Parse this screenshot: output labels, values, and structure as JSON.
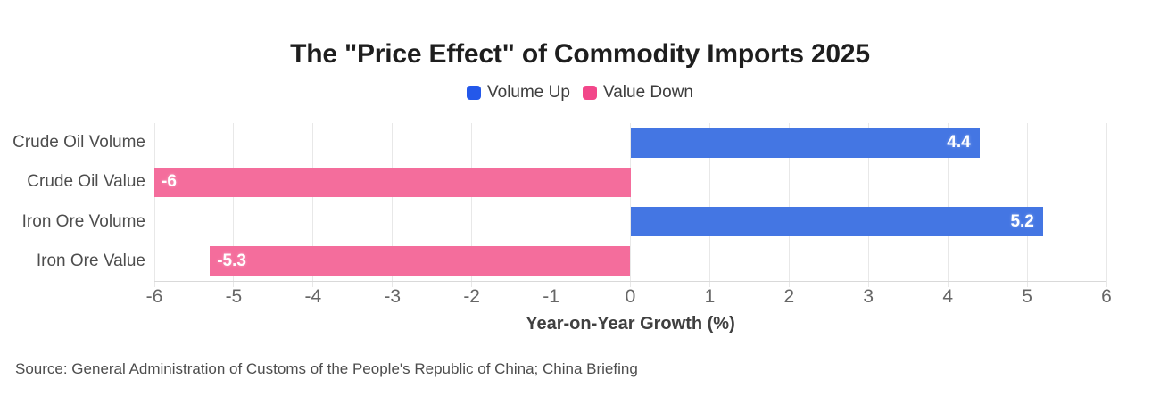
{
  "header": {
    "title": "The \"Price Effect\" of Commodity Imports 2025"
  },
  "legend": {
    "items": [
      {
        "label": "Volume Up",
        "color": "#2458EA"
      },
      {
        "label": "Value Down",
        "color": "#F2478A"
      }
    ]
  },
  "axis": {
    "x_title": "Year-on-Year Growth (%)"
  },
  "footer": {
    "source": "Source: General Administration of Customs of the People's Republic of China; China Briefing"
  },
  "chart_data": {
    "type": "bar",
    "orientation": "horizontal",
    "title": "The \"Price Effect\" of Commodity Imports 2025",
    "categories": [
      "Crude Oil Volume",
      "Crude Oil Value",
      "Iron Ore Volume",
      "Iron Ore Value"
    ],
    "values": [
      4.4,
      -6,
      5.2,
      -5.3
    ],
    "data_labels": [
      "4.4",
      "-6",
      "5.2",
      "-5.3"
    ],
    "series_by_bar": [
      "Volume Up",
      "Value Down",
      "Volume Up",
      "Value Down"
    ],
    "bar_colors": [
      "#4476E3",
      "#F46D9C",
      "#4476E3",
      "#F46D9C"
    ],
    "legend": [
      "Volume Up",
      "Value Down"
    ],
    "legend_colors": [
      "#2458EA",
      "#F2478A"
    ],
    "legend_position": "top",
    "xlabel": "Year-on-Year Growth (%)",
    "ylabel": "",
    "xlim": [
      -6,
      6
    ],
    "xticks": [
      -6,
      -5,
      -4,
      -3,
      -2,
      -1,
      0,
      1,
      2,
      3,
      4,
      5,
      6
    ],
    "grid": true,
    "source": "Source: General Administration of Customs of the People's Republic of China; China Briefing"
  }
}
